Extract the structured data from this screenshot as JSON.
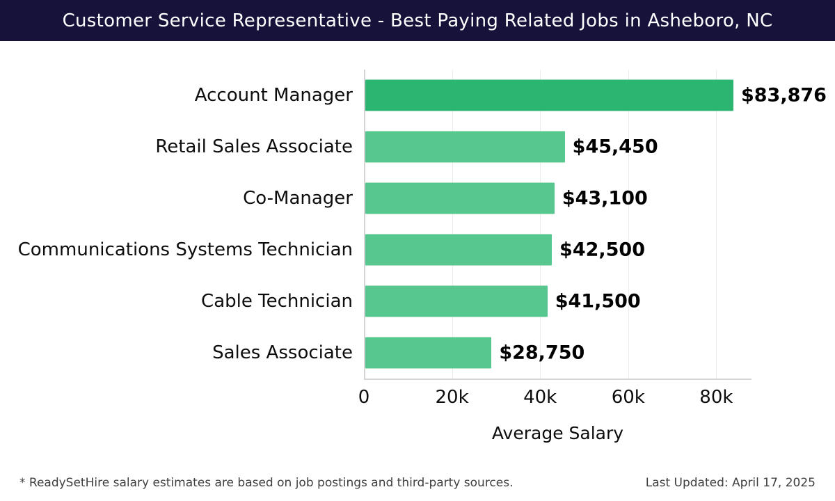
{
  "header": {
    "title": "Customer Service Representative - Best Paying Related Jobs in Asheboro, NC"
  },
  "chart_data": {
    "type": "bar",
    "orientation": "horizontal",
    "title": "Customer Service Representative - Best Paying Related Jobs in Asheboro, NC",
    "categories": [
      "Account Manager",
      "Retail Sales Associate",
      "Co-Manager",
      "Communications Systems Technician",
      "Cable Technician",
      "Sales Associate"
    ],
    "values": [
      83876,
      45450,
      43100,
      42500,
      41500,
      28750
    ],
    "value_labels": [
      "$83,876",
      "$45,450",
      "$43,100",
      "$42,500",
      "$41,500",
      "$28,750"
    ],
    "bar_colors": [
      "#2bb571",
      "#57c78f",
      "#57c78f",
      "#57c78f",
      "#57c78f",
      "#57c78f"
    ],
    "xlabel": "Average Salary",
    "ylabel": "",
    "xlim": [
      0,
      88000
    ],
    "x_ticks": [
      0,
      20000,
      40000,
      60000,
      80000
    ],
    "x_tick_labels": [
      "0",
      "20k",
      "40k",
      "60k",
      "80k"
    ],
    "legend_position": "none",
    "grid": "light-vertical"
  },
  "footer": {
    "disclaimer": "* ReadySetHire salary estimates are based on job postings and third-party sources.",
    "last_updated": "Last Updated: April 17, 2025"
  }
}
